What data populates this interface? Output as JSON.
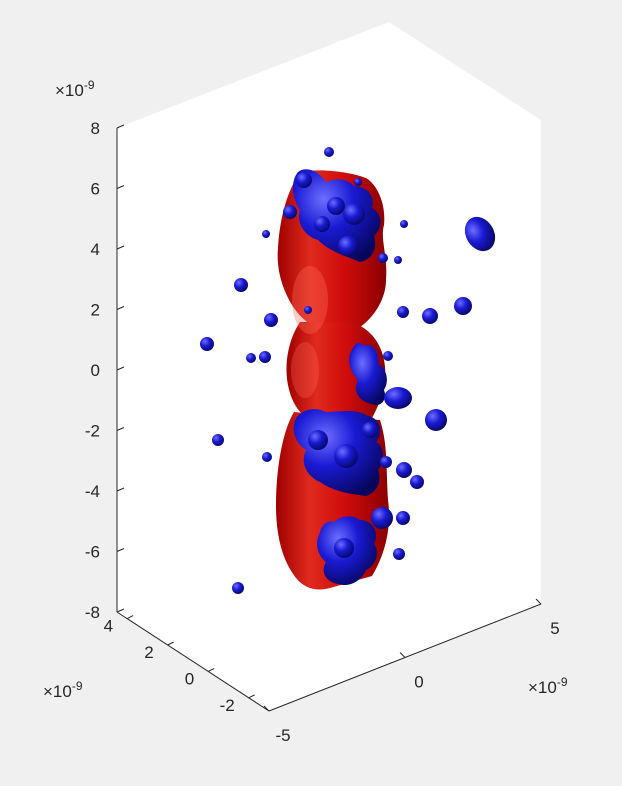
{
  "figure": {
    "background": "#f0f0f0",
    "axes_background": "#ffffff"
  },
  "chart_data": {
    "type": "isosurface-3d",
    "title": "",
    "xlabel": "",
    "ylabel": "",
    "zlabel": "",
    "view": "3D oblique",
    "grid": false,
    "axes": {
      "z": {
        "ticks": [
          "-8",
          "-6",
          "-4",
          "-2",
          "0",
          "2",
          "4",
          "6",
          "8"
        ],
        "values": [
          -8,
          -6,
          -4,
          -2,
          0,
          2,
          4,
          6,
          8
        ],
        "range": [
          -8,
          8
        ],
        "exponent": "×10",
        "exponent_power": "-9"
      },
      "y": {
        "ticks": [
          "-2",
          "0",
          "2",
          "4"
        ],
        "values": [
          -2,
          0,
          2,
          4
        ],
        "range": [
          -3,
          4.5
        ],
        "exponent": "×10",
        "exponent_power": "-9"
      },
      "x": {
        "ticks": [
          "-5",
          "0",
          "5"
        ],
        "values": [
          -5,
          0,
          5
        ],
        "range": [
          -5,
          5
        ],
        "exponent": "×10",
        "exponent_power": "-9"
      }
    },
    "surfaces": [
      {
        "color": "#d40000",
        "shape": "elongated lobed column"
      },
      {
        "color": "#1a1ad4",
        "shape": "clustered spheres and blobs"
      }
    ]
  }
}
